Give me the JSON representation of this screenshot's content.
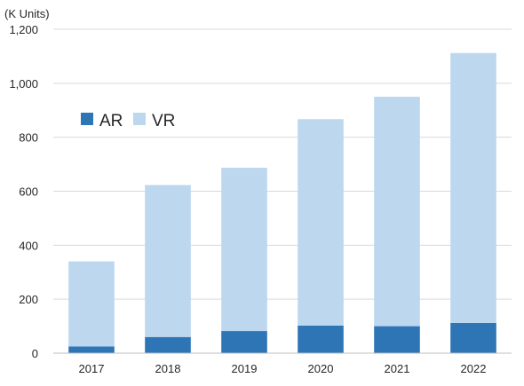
{
  "chart_data": {
    "type": "bar",
    "stacked": true,
    "unit_label": "(K Units)",
    "categories": [
      "2017",
      "2018",
      "2019",
      "2020",
      "2021",
      "2022"
    ],
    "series": [
      {
        "name": "AR",
        "values": [
          25,
          60,
          82,
          102,
          100,
          112
        ],
        "color": "#2e75b6"
      },
      {
        "name": "VR",
        "values": [
          315,
          563,
          605,
          765,
          850,
          1000
        ],
        "color": "#bdd7ee"
      }
    ],
    "ylim": [
      0,
      1200
    ],
    "yticks": [
      0,
      200,
      400,
      600,
      800,
      1000,
      1200
    ],
    "ytick_labels": [
      "0",
      "200",
      "400",
      "600",
      "800",
      "1,000",
      "1,200"
    ],
    "grid": true,
    "legend_position": "upper-left"
  }
}
